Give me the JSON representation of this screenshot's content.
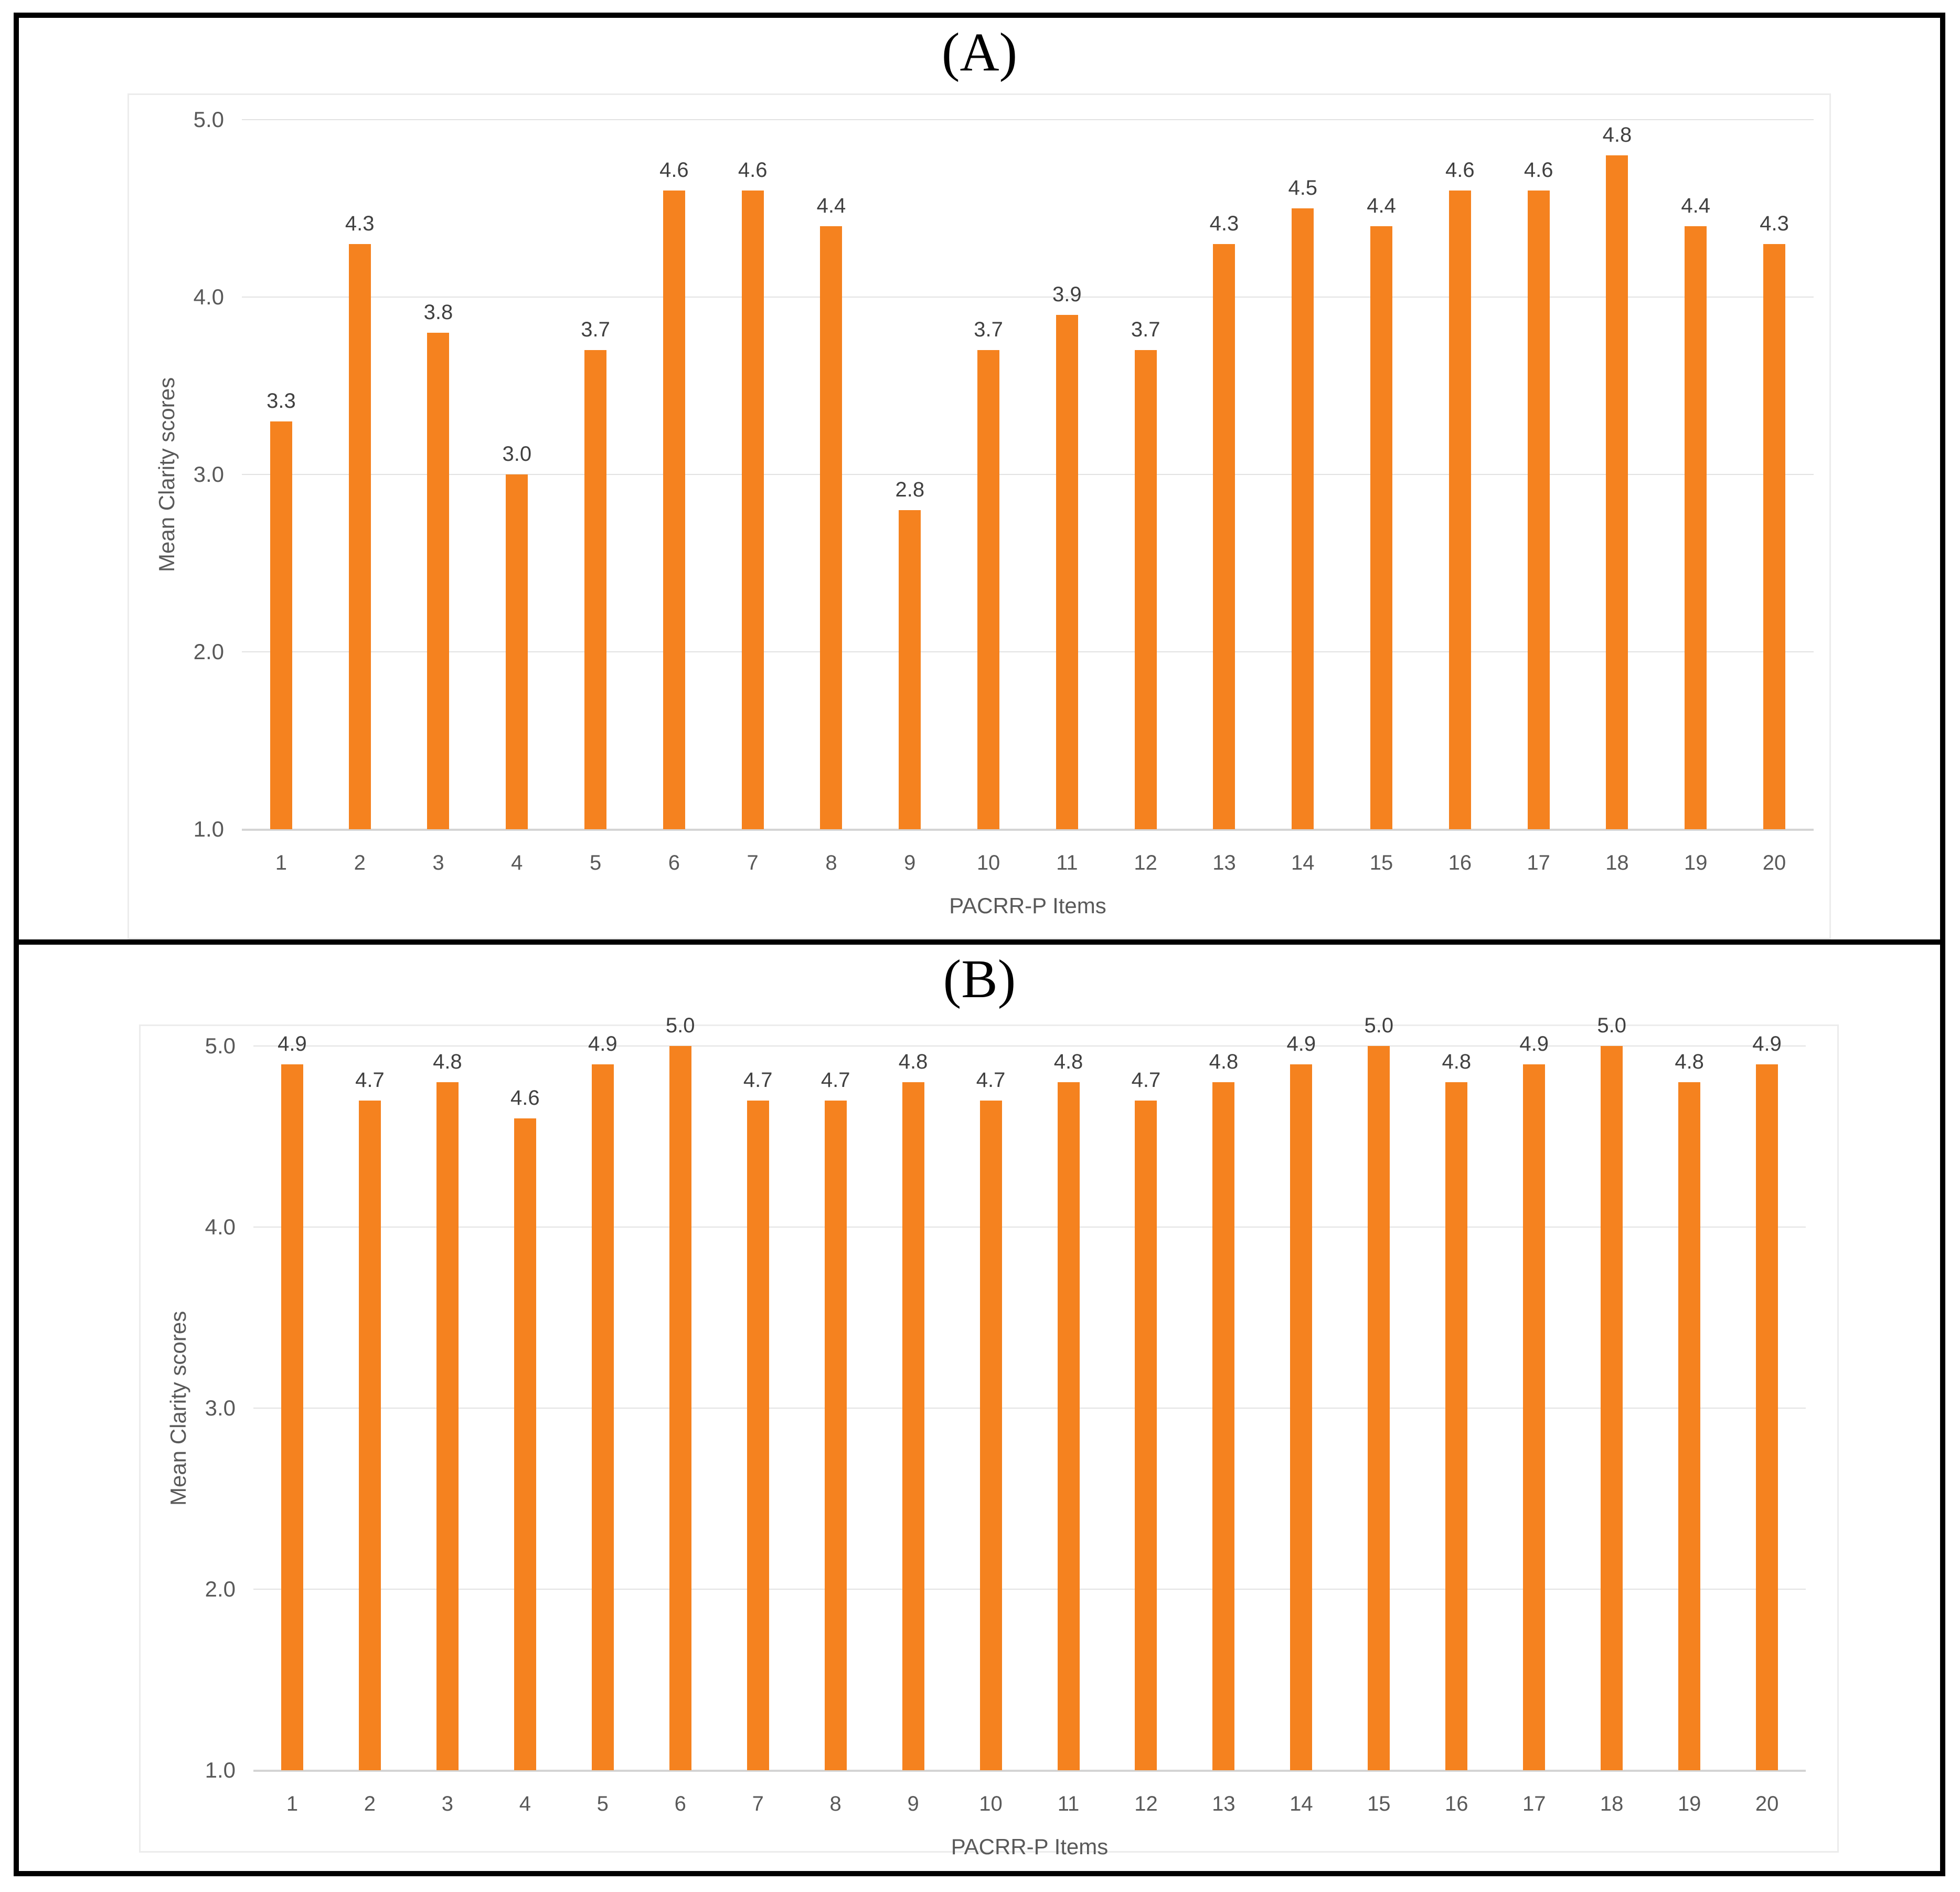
{
  "chart_data": [
    {
      "type": "bar",
      "panel_label": "(A)",
      "categories": [
        "1",
        "2",
        "3",
        "4",
        "5",
        "6",
        "7",
        "8",
        "9",
        "10",
        "11",
        "12",
        "13",
        "14",
        "15",
        "16",
        "17",
        "18",
        "19",
        "20"
      ],
      "values": [
        3.3,
        4.3,
        3.8,
        3.0,
        3.7,
        4.6,
        4.6,
        4.4,
        2.8,
        3.7,
        3.9,
        3.7,
        4.3,
        4.5,
        4.4,
        4.6,
        4.6,
        4.8,
        4.4,
        4.3
      ],
      "xlabel": "PACRR-P Items",
      "ylabel": "Mean Clarity scores",
      "ylim": [
        1.0,
        5.0
      ],
      "yticks": [
        "5.0",
        "4.0",
        "3.0",
        "2.0",
        "1.0"
      ],
      "grid": true,
      "legend": "none",
      "bar_color": "#F5821F",
      "data_label_color": "#404040",
      "axis_text_color": "#595959"
    },
    {
      "type": "bar",
      "panel_label": "(B)",
      "categories": [
        "1",
        "2",
        "3",
        "4",
        "5",
        "6",
        "7",
        "8",
        "9",
        "10",
        "11",
        "12",
        "13",
        "14",
        "15",
        "16",
        "17",
        "18",
        "19",
        "20"
      ],
      "values": [
        4.9,
        4.7,
        4.8,
        4.6,
        4.9,
        5.0,
        4.7,
        4.7,
        4.8,
        4.7,
        4.8,
        4.7,
        4.8,
        4.9,
        5.0,
        4.8,
        4.9,
        5.0,
        4.8,
        4.9
      ],
      "xlabel": "PACRR-P Items",
      "ylabel": "Mean Clarity scores",
      "ylim": [
        1.0,
        5.0
      ],
      "yticks": [
        "5.0",
        "4.0",
        "3.0",
        "2.0",
        "1.0"
      ],
      "grid": true,
      "legend": "none",
      "bar_color": "#F5821F",
      "data_label_color": "#404040",
      "axis_text_color": "#595959"
    }
  ]
}
